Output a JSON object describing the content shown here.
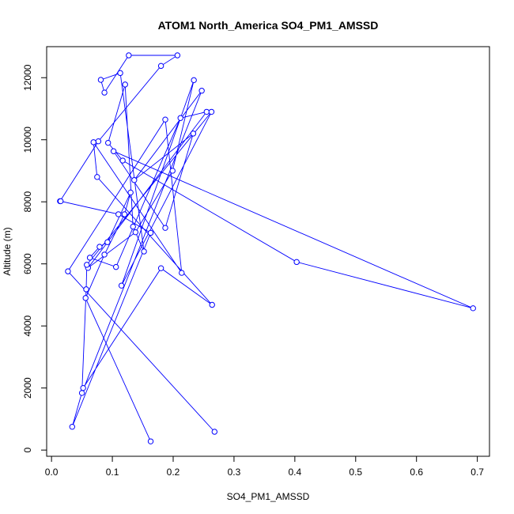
{
  "chart_data": {
    "type": "line",
    "title": "ATOM1 North_America SO4_PM1_AMSSD",
    "xlabel": "SO4_PM1_AMSSD",
    "ylabel": "Altitude (m)",
    "xlim": [
      -0.008,
      0.72
    ],
    "ylim": [
      -200,
      13000
    ],
    "x_ticks": [
      0.0,
      0.1,
      0.2,
      0.3,
      0.4,
      0.5,
      0.6,
      0.7
    ],
    "x_tick_labels": [
      "0.0",
      "0.1",
      "0.2",
      "0.3",
      "0.4",
      "0.5",
      "0.6",
      "0.7"
    ],
    "y_ticks": [
      0,
      2000,
      4000,
      6000,
      8000,
      10000,
      12000
    ],
    "y_tick_labels": [
      "0",
      "2000",
      "4000",
      "6000",
      "8000",
      "10000",
      "12000"
    ],
    "grid": false,
    "legend": "none",
    "series_color": "#0000ff",
    "series": [
      {
        "x": [
          0.163,
          0.056,
          0.087,
          0.12,
          0.13,
          0.092,
          0.079,
          0.063,
          0.106,
          0.212,
          0.255,
          0.06,
          0.138,
          0.199,
          0.234,
          0.115,
          0.263,
          0.058,
          0.057,
          0.05,
          0.247,
          0.136,
          0.233,
          0.187,
          0.102,
          0.693,
          0.403,
          0.117,
          0.093,
          0.121,
          0.134,
          0.152,
          0.113,
          0.081,
          0.087,
          0.127,
          0.207,
          0.18,
          0.077,
          0.014,
          0.015,
          0.11,
          0.163,
          0.034,
          0.052,
          0.18,
          0.264,
          0.075,
          0.069,
          0.214,
          0.187,
          0.027,
          0.268
        ],
        "y": [
          280,
          4900,
          6300,
          7600,
          8300,
          6700,
          6550,
          6200,
          5900,
          10700,
          10900,
          5870,
          7020,
          9000,
          11920,
          5300,
          10900,
          5970,
          5180,
          1840,
          11580,
          8700,
          10200,
          7160,
          9630,
          4570,
          6060,
          9330,
          9900,
          11780,
          7200,
          6400,
          12150,
          11930,
          11520,
          12720,
          12720,
          12380,
          9950,
          8020,
          8020,
          7600,
          7000,
          750,
          2000,
          5860,
          4680,
          8800,
          9920,
          5710,
          10650,
          5760,
          590
        ]
      }
    ]
  }
}
